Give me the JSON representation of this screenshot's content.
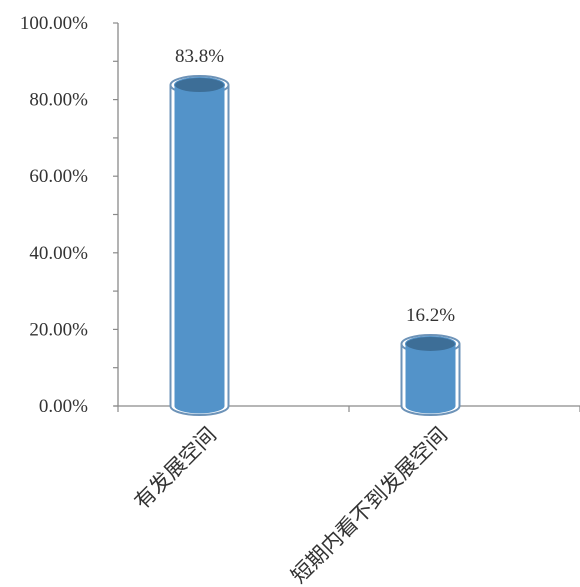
{
  "chart_data": {
    "type": "bar",
    "categories": [
      "有发展空间",
      "短期内看不到发展空间"
    ],
    "values": [
      83.8,
      16.2
    ],
    "data_labels": [
      "83.8%",
      "16.2%"
    ],
    "ylim": [
      0,
      100
    ],
    "yticks": [
      0,
      20,
      40,
      60,
      80,
      100
    ],
    "ytick_labels": [
      "0.00%",
      "20.00%",
      "40.00%",
      "60.00%",
      "80.00%",
      "100.00%"
    ],
    "title": "",
    "xlabel": "",
    "ylabel": "",
    "grid": false,
    "legend": "none",
    "style": "cylinder",
    "colors": {
      "bar": "#5393c9",
      "bar_top": "#3d6e97",
      "outline": "#6d93b8",
      "axis": "#8a8a8a"
    }
  }
}
